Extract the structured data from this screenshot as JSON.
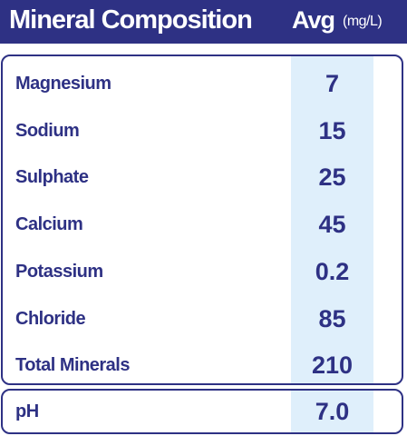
{
  "header": {
    "title": "Mineral Composition",
    "column": "Avg",
    "unit": "(mg/L)"
  },
  "table": {
    "rows": [
      [
        "Magnesium",
        "7"
      ],
      [
        "Sodium",
        "15"
      ],
      [
        "Sulphate",
        "25"
      ],
      [
        "Calcium",
        "45"
      ],
      [
        "Potassium",
        "0.2"
      ],
      [
        "Chloride",
        "85"
      ],
      [
        "Total Minerals",
        "210"
      ]
    ]
  },
  "ph": {
    "label": "pH",
    "value": "7.0"
  }
}
